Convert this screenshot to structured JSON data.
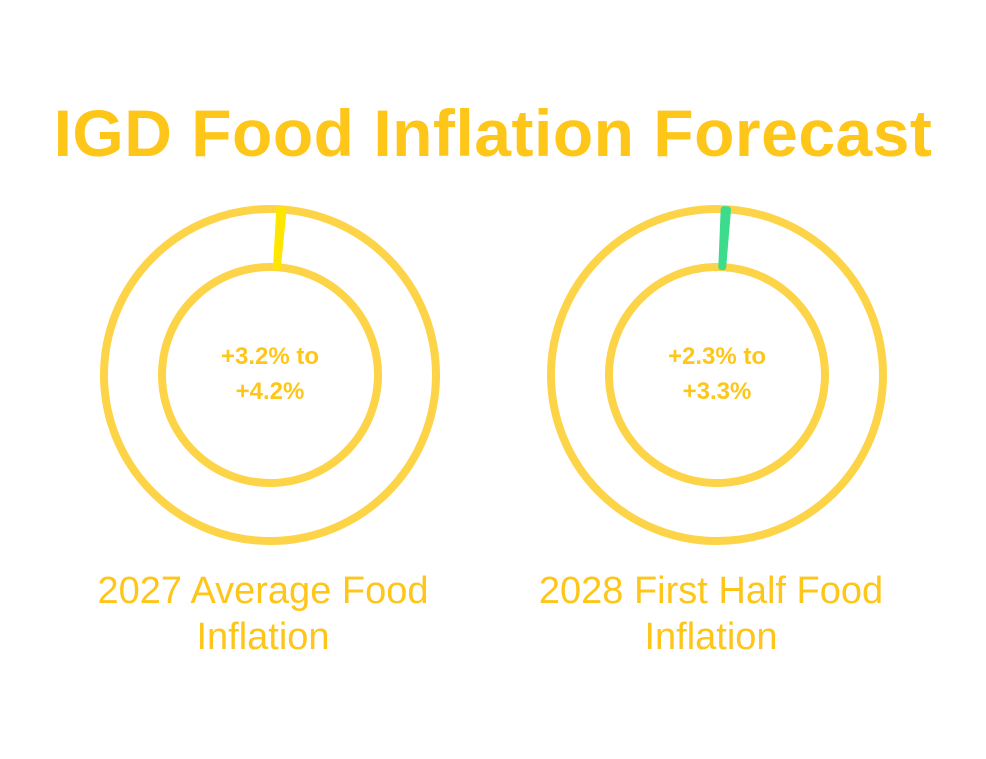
{
  "title": "IGD Food Inflation Forecast",
  "colors": {
    "ring": "#fdd447",
    "text": "#ffc61a",
    "marker_2027": "#ffe600",
    "marker_2028": "#3ddc8c"
  },
  "chart_data": [
    {
      "type": "pie",
      "center_text_line1": "+3.2% to",
      "center_text_line2": "+4.2%",
      "caption_line1": "2027 Average Food",
      "caption_line2": "Inflation",
      "range": [
        3.2,
        4.2
      ]
    },
    {
      "type": "pie",
      "center_text_line1": "+2.3% to",
      "center_text_line2": "+3.3%",
      "caption_line1": "2028 First Half Food",
      "caption_line2": "Inflation",
      "range": [
        2.3,
        3.3
      ]
    }
  ]
}
